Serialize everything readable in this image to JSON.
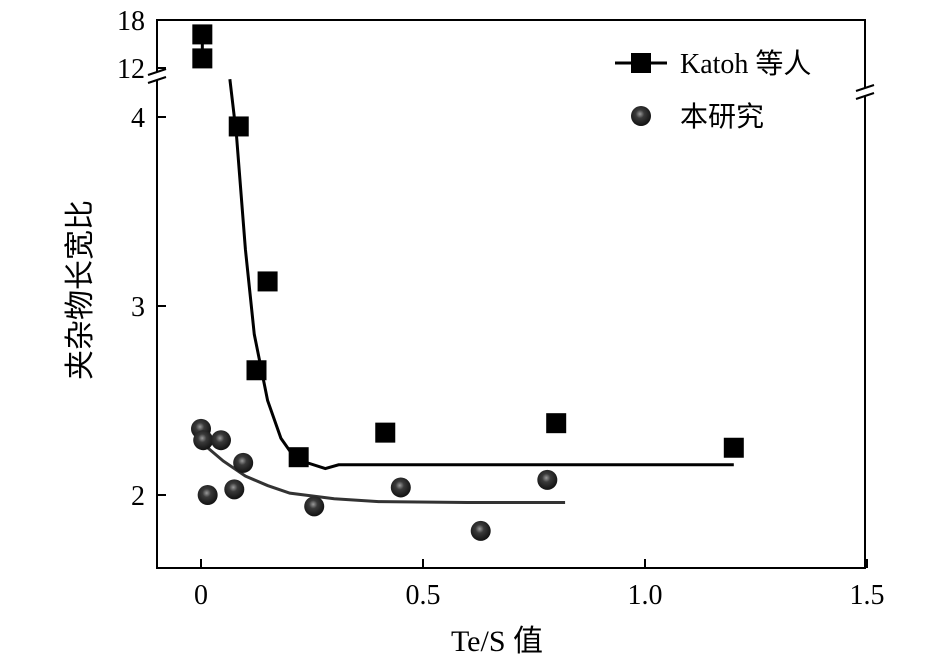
{
  "chart_data": {
    "type": "scatter",
    "xlabel": "Te/S 值",
    "ylabel": "夹杂物长宽比",
    "xlim": [
      -0.1,
      1.5
    ],
    "ylim_lower": [
      1.62,
      4.3
    ],
    "ylim_upper": [
      12,
      18
    ],
    "y_axis_break": true,
    "x_ticks": [
      "0",
      "0.5",
      "1.0",
      "1.5"
    ],
    "x_tick_values": [
      0,
      0.5,
      1.0,
      1.5
    ],
    "y_ticks": [
      "2",
      "3",
      "4",
      "12",
      "18"
    ],
    "y_tick_values": [
      2,
      3,
      4,
      12,
      18
    ],
    "grid": false,
    "legend_position": "top-right",
    "series": [
      {
        "name": "Katoh 等人",
        "marker": "square",
        "color": "#000000",
        "points": [
          [
            0.003,
            16.2
          ],
          [
            0.003,
            13.2
          ],
          [
            0.085,
            3.95
          ],
          [
            0.15,
            3.13
          ],
          [
            0.125,
            2.66
          ],
          [
            0.22,
            2.2
          ],
          [
            0.415,
            2.33
          ],
          [
            0.8,
            2.38
          ],
          [
            1.2,
            2.25
          ]
        ],
        "fit": [
          [
            0.065,
            4.2
          ],
          [
            0.08,
            3.9
          ],
          [
            0.1,
            3.3
          ],
          [
            0.12,
            2.85
          ],
          [
            0.15,
            2.5
          ],
          [
            0.18,
            2.3
          ],
          [
            0.21,
            2.2
          ],
          [
            0.24,
            2.17
          ],
          [
            0.28,
            2.14
          ],
          [
            0.31,
            2.16
          ],
          [
            0.6,
            2.16
          ],
          [
            1.2,
            2.16
          ]
        ]
      },
      {
        "name": "本研究",
        "marker": "sphere",
        "color": "#222222",
        "points": [
          [
            0.0,
            2.35
          ],
          [
            0.005,
            2.29
          ],
          [
            0.045,
            2.29
          ],
          [
            0.015,
            2.0
          ],
          [
            0.075,
            2.03
          ],
          [
            0.095,
            2.17
          ],
          [
            0.255,
            1.94
          ],
          [
            0.45,
            2.04
          ],
          [
            0.63,
            1.81
          ],
          [
            0.78,
            2.08
          ]
        ],
        "fit": [
          [
            0.01,
            2.26
          ],
          [
            0.05,
            2.18
          ],
          [
            0.1,
            2.1
          ],
          [
            0.15,
            2.05
          ],
          [
            0.2,
            2.01
          ],
          [
            0.3,
            1.98
          ],
          [
            0.4,
            1.965
          ],
          [
            0.6,
            1.96
          ],
          [
            0.82,
            1.96
          ]
        ]
      }
    ]
  }
}
